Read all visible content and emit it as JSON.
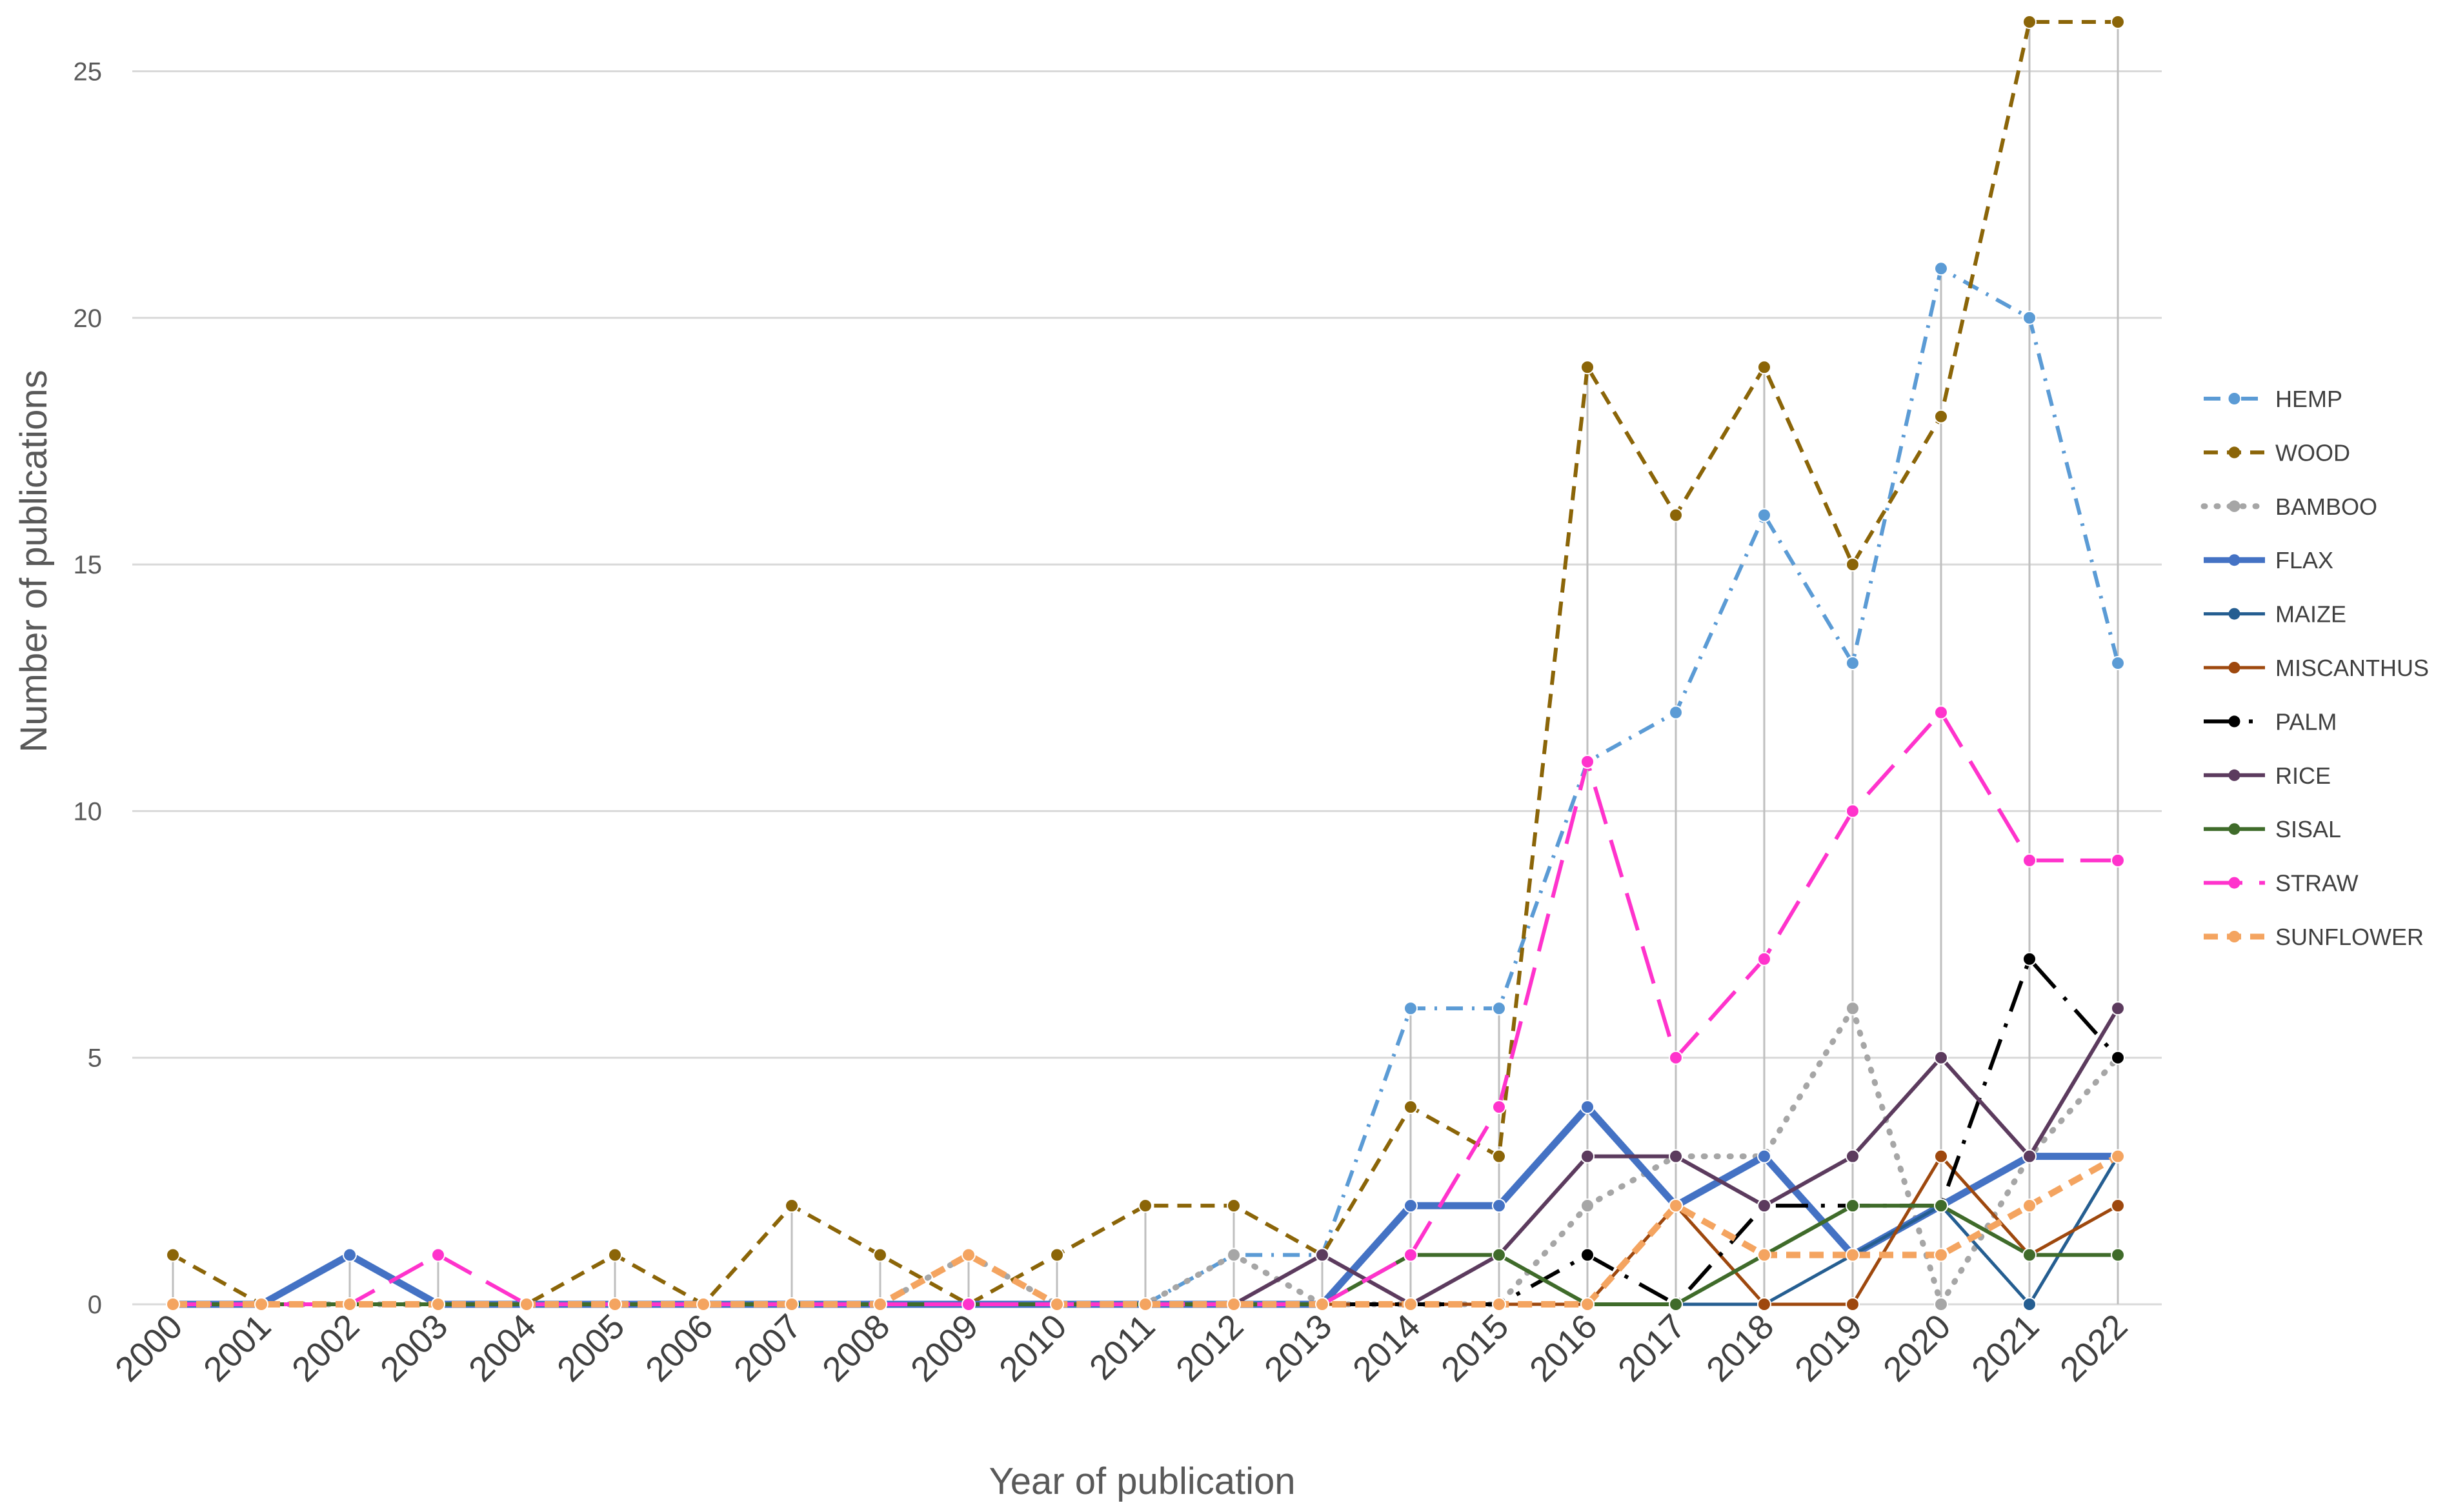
{
  "chart_data": {
    "type": "line",
    "xlabel": "Year of publication",
    "ylabel": "Number of publications",
    "ylim": [
      0,
      26
    ],
    "yticks": [
      0,
      5,
      10,
      15,
      20,
      25
    ],
    "grid": "horizontal",
    "legend_position": "right",
    "categories": [
      "2000",
      "2001",
      "2002",
      "2003",
      "2004",
      "2005",
      "2006",
      "2007",
      "2008",
      "2009",
      "2010",
      "2011",
      "2012",
      "2013",
      "2014",
      "2015",
      "2016",
      "2017",
      "2018",
      "2019",
      "2020",
      "2021",
      "2022"
    ],
    "series": [
      {
        "name": "HEMP",
        "color": "#5b9bd5",
        "dash": "dashdot",
        "width": 6,
        "values": [
          0,
          0,
          0,
          0,
          0,
          0,
          0,
          0,
          0,
          0,
          0,
          0,
          1,
          1,
          6,
          6,
          11,
          12,
          16,
          13,
          21,
          20,
          13
        ]
      },
      {
        "name": "WOOD",
        "color": "#8b6508",
        "dash": "dash",
        "width": 6,
        "values": [
          1,
          0,
          0,
          0,
          0,
          1,
          0,
          2,
          1,
          0,
          1,
          2,
          2,
          1,
          4,
          3,
          19,
          16,
          19,
          15,
          18,
          26,
          26
        ]
      },
      {
        "name": "BAMBOO",
        "color": "#a6a6a6",
        "dash": "dot",
        "width": 9,
        "values": [
          0,
          0,
          0,
          0,
          0,
          0,
          0,
          0,
          0,
          1,
          0,
          0,
          1,
          0,
          0,
          0,
          2,
          3,
          3,
          6,
          0,
          3,
          5
        ]
      },
      {
        "name": "FLAX",
        "color": "#4472c4",
        "dash": "solid",
        "width": 11,
        "values": [
          0,
          0,
          1,
          0,
          0,
          0,
          0,
          0,
          0,
          0,
          0,
          0,
          0,
          0,
          2,
          2,
          4,
          2,
          3,
          1,
          2,
          3,
          3
        ]
      },
      {
        "name": "MAIZE",
        "color": "#255e91",
        "dash": "solid",
        "width": 5,
        "values": [
          0,
          0,
          0,
          0,
          0,
          0,
          0,
          0,
          0,
          0,
          0,
          0,
          0,
          0,
          0,
          0,
          0,
          0,
          0,
          1,
          2,
          0,
          3
        ]
      },
      {
        "name": "MISCANTHUS",
        "color": "#9e480e",
        "dash": "solid",
        "width": 5,
        "values": [
          0,
          0,
          0,
          0,
          0,
          0,
          0,
          0,
          0,
          0,
          0,
          0,
          0,
          0,
          0,
          0,
          0,
          2,
          0,
          0,
          3,
          1,
          2
        ]
      },
      {
        "name": "PALM",
        "color": "#000000",
        "dash": "longdashdot",
        "width": 6,
        "values": [
          0,
          0,
          0,
          0,
          0,
          0,
          0,
          0,
          0,
          0,
          0,
          0,
          0,
          0,
          0,
          0,
          1,
          0,
          2,
          2,
          2,
          7,
          5
        ]
      },
      {
        "name": "RICE",
        "color": "#5c3b5e",
        "dash": "solid",
        "width": 6,
        "values": [
          0,
          0,
          0,
          0,
          0,
          0,
          0,
          0,
          0,
          0,
          0,
          0,
          0,
          1,
          0,
          1,
          3,
          3,
          2,
          3,
          5,
          3,
          6
        ]
      },
      {
        "name": "SISAL",
        "color": "#3f6b2a",
        "dash": "solid",
        "width": 6,
        "values": [
          0,
          0,
          0,
          0,
          0,
          0,
          0,
          0,
          0,
          0,
          0,
          0,
          0,
          0,
          1,
          1,
          0,
          0,
          1,
          2,
          2,
          1,
          1
        ]
      },
      {
        "name": "STRAW",
        "color": "#ff33cc",
        "dash": "longdash",
        "width": 6,
        "values": [
          0,
          0,
          0,
          1,
          0,
          0,
          0,
          0,
          0,
          0,
          0,
          0,
          0,
          0,
          1,
          4,
          11,
          5,
          7,
          10,
          12,
          9,
          9
        ]
      },
      {
        "name": "SUNFLOWER",
        "color": "#f4a460",
        "dash": "dash",
        "width": 10,
        "values": [
          0,
          0,
          0,
          0,
          0,
          0,
          0,
          0,
          0,
          1,
          0,
          0,
          0,
          0,
          0,
          0,
          0,
          2,
          1,
          1,
          1,
          2,
          3
        ]
      }
    ]
  }
}
